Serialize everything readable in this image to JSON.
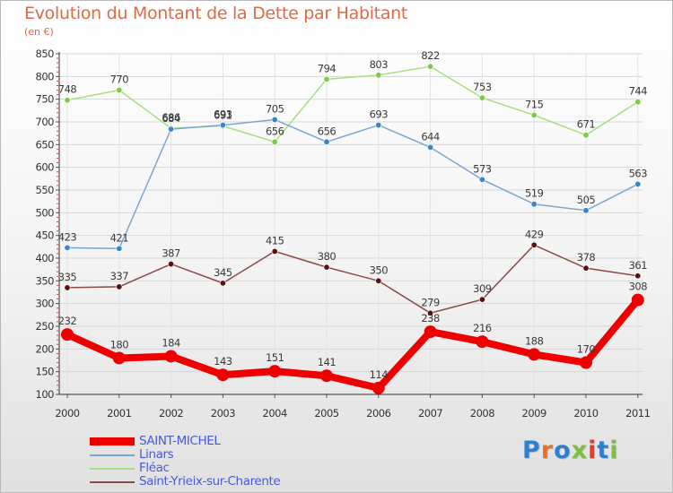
{
  "title": "Evolution du Montant de la Dette par Habitant",
  "subtitle": "(en €)",
  "logo": {
    "text": "Proxiti",
    "colors": [
      "#2f7fd0",
      "#e8702a",
      "#2f7fd0",
      "#7cc043",
      "#e53a2c",
      "#2f7fd0",
      "#7cc043"
    ]
  },
  "chart_data": {
    "type": "line",
    "x": [
      "2000",
      "2001",
      "2002",
      "2003",
      "2004",
      "2005",
      "2006",
      "2007",
      "2008",
      "2009",
      "2010",
      "2011"
    ],
    "ylim": [
      100,
      850
    ],
    "yticks": [
      100,
      150,
      200,
      250,
      300,
      350,
      400,
      450,
      500,
      550,
      600,
      650,
      700,
      750,
      800,
      850
    ],
    "grid": true,
    "legend_position": "bottom-left",
    "series": [
      {
        "name": "SAINT-MICHEL",
        "color": "#ee0000",
        "marker_color": "#ee0000",
        "thick": true,
        "values": [
          232,
          180,
          184,
          143,
          151,
          141,
          114,
          238,
          216,
          188,
          170,
          308
        ]
      },
      {
        "name": "Linars",
        "color": "#7ca5d2",
        "marker_color": "#3a84c8",
        "thick": false,
        "values": [
          423,
          421,
          684,
          693,
          705,
          656,
          693,
          644,
          573,
          519,
          505,
          563
        ]
      },
      {
        "name": "Fléac",
        "color": "#a6df80",
        "marker_color": "#7ccb42",
        "thick": false,
        "values": [
          748,
          770,
          686,
          691,
          656,
          794,
          803,
          822,
          753,
          715,
          671,
          744
        ]
      },
      {
        "name": "Saint-Yrieix-sur-Charente",
        "color": "#8a4a48",
        "marker_color": "#5a1010",
        "thick": false,
        "values": [
          335,
          337,
          387,
          345,
          415,
          380,
          350,
          279,
          309,
          429,
          378,
          361
        ]
      }
    ]
  }
}
